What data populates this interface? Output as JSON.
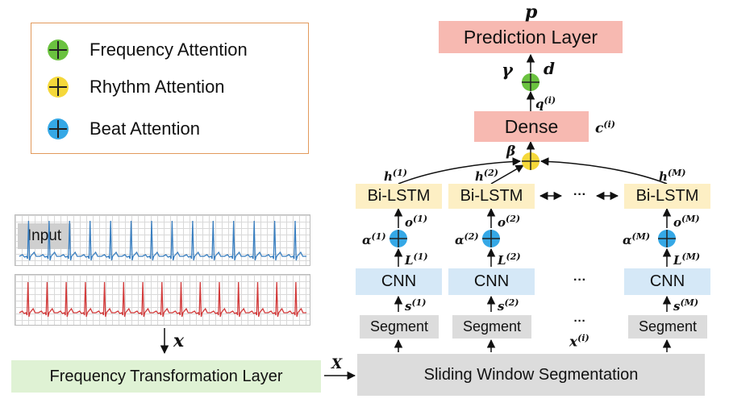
{
  "legend": {
    "frequency": "Frequency Attention",
    "rhythm": "Rhythm Attention",
    "beat": "Beat Attention",
    "colors": {
      "frequency": "#6ac23f",
      "rhythm": "#f5d83a",
      "beat": "#35a8e6"
    }
  },
  "blocks": {
    "prediction": "Prediction Layer",
    "dense": "Dense",
    "bilstm": "Bi-LSTM",
    "cnn": "CNN",
    "segment": "Segment",
    "sliding": "Sliding Window Segmentation",
    "freq_transform": "Frequency Transformation Layer",
    "input": "Input",
    "ellipsis": "···"
  },
  "symbols": {
    "p": "p",
    "gamma": "γ",
    "d": "d",
    "q": "q",
    "q_sup": "(i)",
    "c": "c",
    "c_sup": "(i)",
    "beta": "β",
    "h": "h",
    "o": "o",
    "alpha": "α",
    "L": "L",
    "s": "s",
    "x_small": "x",
    "X_big": "X",
    "xi": "x",
    "xi_sup": "(i)",
    "sup1": "(1)",
    "sup2": "(2)",
    "supM": "(M)"
  }
}
